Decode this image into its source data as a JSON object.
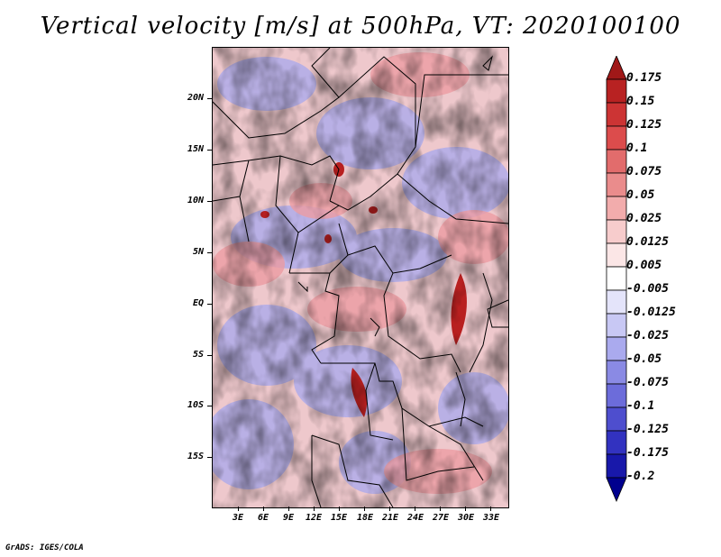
{
  "title": "Vertical velocity [m/s] at 500hPa, VT: 2020100100",
  "latitude_labels": [
    "20N",
    "15N",
    "10N",
    "5N",
    "EQ",
    "5S",
    "10S",
    "15S"
  ],
  "longitude_labels": [
    "3E",
    "6E",
    "9E",
    "12E",
    "15E",
    "18E",
    "21E",
    "24E",
    "27E",
    "30E",
    "33E"
  ],
  "colorbar": {
    "labels": [
      "0.175",
      "0.15",
      "0.125",
      "0.1",
      "0.075",
      "0.05",
      "0.025",
      "0.0125",
      "0.005",
      "-0.005",
      "-0.0125",
      "-0.025",
      "-0.05",
      "-0.075",
      "-0.1",
      "-0.125",
      "-0.175",
      "-0.2"
    ],
    "colors": [
      "#a01818",
      "#b82222",
      "#cc3434",
      "#dc4c4c",
      "#e26c6c",
      "#ea8c8c",
      "#f2acac",
      "#f7cccc",
      "#fbe6e6",
      "#ffffff",
      "#e4e4fa",
      "#c8c8f4",
      "#aaaaee",
      "#8a8ae4",
      "#6c6cda",
      "#4e4ece",
      "#3232c0",
      "#1818aa",
      "#00008e"
    ]
  },
  "credit": "GrADS: IGES/COLA"
}
